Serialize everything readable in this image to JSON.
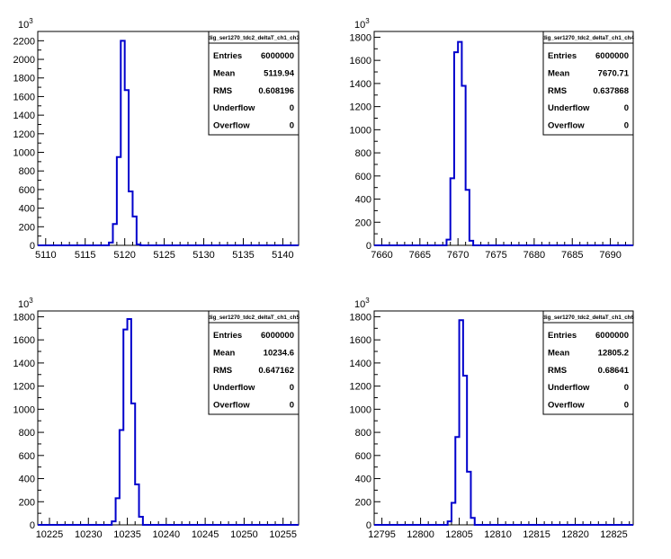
{
  "axis_multiplier": {
    "base": "10",
    "exponent": "3"
  },
  "stats_labels": [
    "Entries",
    "Mean",
    "RMS",
    "Underflow",
    "Overflow"
  ],
  "line_color": "#0000cc",
  "chart_data": [
    {
      "type": "histogram",
      "title": "dig_ser1270_tdc2_deltaT_ch1_ch3",
      "xlabel": "",
      "ylabel": "",
      "xlim": [
        5109,
        5142
      ],
      "ylim": [
        0,
        2300
      ],
      "yticks": [
        0,
        200,
        400,
        600,
        800,
        1000,
        1200,
        1400,
        1600,
        1800,
        2000,
        2200
      ],
      "xticks": [
        5110,
        5115,
        5120,
        5125,
        5130,
        5135,
        5140
      ],
      "bin_edges": [
        5118.0,
        5118.5,
        5119.0,
        5119.5,
        5120.0,
        5120.5,
        5121.0,
        5121.5,
        5122.0
      ],
      "counts": [
        30,
        230,
        950,
        2200,
        1670,
        580,
        310,
        10
      ],
      "stats": {
        "Entries": "6000000",
        "Mean": "5119.94",
        "RMS": "0.608196",
        "Underflow": "0",
        "Overflow": "0"
      },
      "grid": false,
      "legend_position": "top-right"
    },
    {
      "type": "histogram",
      "title": "dig_ser1270_tdc2_deltaT_ch1_ch4",
      "xlabel": "",
      "ylabel": "",
      "xlim": [
        7659,
        7693
      ],
      "ylim": [
        0,
        1850
      ],
      "yticks": [
        0,
        200,
        400,
        600,
        800,
        1000,
        1200,
        1400,
        1600,
        1800
      ],
      "xticks": [
        7660,
        7665,
        7670,
        7675,
        7680,
        7685,
        7690
      ],
      "bin_edges": [
        7668.5,
        7669.0,
        7669.5,
        7670.0,
        7670.5,
        7671.0,
        7671.5,
        7672.0
      ],
      "counts": [
        50,
        580,
        1670,
        1760,
        1380,
        480,
        40
      ],
      "stats": {
        "Entries": "6000000",
        "Mean": "7670.71",
        "RMS": "0.637868",
        "Underflow": "0",
        "Overflow": "0"
      },
      "grid": false,
      "legend_position": "top-right"
    },
    {
      "type": "histogram",
      "title": "dig_ser1270_tdc2_deltaT_ch1_ch5",
      "xlabel": "",
      "ylabel": "",
      "xlim": [
        10223.5,
        10257
      ],
      "ylim": [
        0,
        1850
      ],
      "yticks": [
        0,
        200,
        400,
        600,
        800,
        1000,
        1200,
        1400,
        1600,
        1800
      ],
      "xticks": [
        10225,
        10230,
        10235,
        10240,
        10245,
        10250,
        10255
      ],
      "bin_edges": [
        10233.0,
        10233.5,
        10234.0,
        10234.5,
        10235.0,
        10235.5,
        10236.0,
        10236.5,
        10237.0
      ],
      "counts": [
        30,
        230,
        820,
        1690,
        1780,
        1050,
        350,
        70
      ],
      "stats": {
        "Entries": "6000000",
        "Mean": "10234.6",
        "RMS": "0.647162",
        "Underflow": "0",
        "Overflow": "0"
      },
      "grid": false,
      "legend_position": "top-right"
    },
    {
      "type": "histogram",
      "title": "dig_ser1270_tdc2_deltaT_ch1_ch6",
      "xlabel": "",
      "ylabel": "",
      "xlim": [
        12794,
        12827.5
      ],
      "ylim": [
        0,
        1850
      ],
      "yticks": [
        0,
        200,
        400,
        600,
        800,
        1000,
        1200,
        1400,
        1600,
        1800
      ],
      "xticks": [
        12795,
        12800,
        12805,
        12810,
        12815,
        12820,
        12825
      ],
      "bin_edges": [
        12803.5,
        12804.0,
        12804.5,
        12805.0,
        12805.5,
        12806.0,
        12806.5,
        12807.0
      ],
      "counts": [
        30,
        190,
        760,
        1770,
        1290,
        460,
        60
      ],
      "stats": {
        "Entries": "6000000",
        "Mean": "12805.2",
        "RMS": "0.68641",
        "Underflow": "0",
        "Overflow": "0"
      },
      "grid": false,
      "legend_position": "top-right"
    }
  ]
}
